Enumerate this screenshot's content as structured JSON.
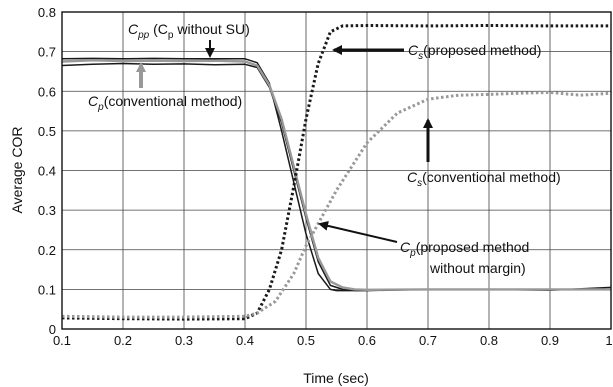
{
  "chart_data": {
    "type": "line",
    "title": "",
    "xlabel": "Time (sec)",
    "ylabel": "Average COR",
    "xlim": [
      0.1,
      1.0
    ],
    "ylim": [
      0,
      0.8
    ],
    "xticks": [
      "0.1",
      "0.2",
      "0.3",
      "0.4",
      "0.5",
      "0.6",
      "0.7",
      "0.8",
      "0.9",
      "1"
    ],
    "yticks": [
      "0",
      "0.1",
      "0.2",
      "0.3",
      "0.4",
      "0.5",
      "0.6",
      "0.7",
      "0.8"
    ],
    "grid": true,
    "legend": "none",
    "colors": {
      "dark": "#1a1a1a",
      "gray": "#999999",
      "grid": "#444444"
    },
    "series": [
      {
        "x": [
          0.1,
          0.15,
          0.2,
          0.25,
          0.3,
          0.35,
          0.4,
          0.42,
          0.44,
          0.46,
          0.48,
          0.5,
          0.52,
          0.54,
          0.55,
          0.57,
          0.6,
          0.7,
          0.8,
          0.9,
          1.0
        ],
        "y": [
          0.682,
          0.683,
          0.682,
          0.683,
          0.682,
          0.682,
          0.682,
          0.672,
          0.62,
          0.5,
          0.37,
          0.24,
          0.14,
          0.1,
          0.097,
          0.097,
          0.098,
          0.1,
          0.1,
          0.098,
          0.105
        ],
        "style": "solid",
        "color": "dark"
      },
      {
        "x": [
          0.1,
          0.15,
          0.2,
          0.25,
          0.3,
          0.35,
          0.4,
          0.42,
          0.44,
          0.46,
          0.48,
          0.5,
          0.52,
          0.54,
          0.56,
          0.58,
          0.6,
          0.7,
          0.8,
          0.9,
          1.0
        ],
        "y": [
          0.665,
          0.668,
          0.67,
          0.668,
          0.669,
          0.667,
          0.668,
          0.66,
          0.61,
          0.52,
          0.4,
          0.28,
          0.17,
          0.11,
          0.1,
          0.097,
          0.097,
          0.1,
          0.1,
          0.099,
          0.1
        ],
        "style": "solid",
        "color": "dark"
      },
      {
        "x": [
          0.1,
          0.15,
          0.2,
          0.25,
          0.3,
          0.35,
          0.4,
          0.42,
          0.44,
          0.46,
          0.48,
          0.5,
          0.52,
          0.54,
          0.56,
          0.58,
          0.6,
          0.7,
          0.8,
          0.9,
          1.0
        ],
        "y": [
          0.675,
          0.678,
          0.676,
          0.677,
          0.676,
          0.677,
          0.675,
          0.665,
          0.615,
          0.53,
          0.41,
          0.29,
          0.18,
          0.12,
          0.105,
          0.1,
          0.099,
          0.1,
          0.1,
          0.1,
          0.1
        ],
        "style": "solid",
        "color": "gray"
      },
      {
        "x": [
          0.1,
          0.2,
          0.3,
          0.4,
          0.42,
          0.44,
          0.46,
          0.47,
          0.48,
          0.5,
          0.52,
          0.54,
          0.56,
          0.6,
          0.7,
          0.8,
          0.9,
          1.0
        ],
        "y": [
          0.028,
          0.026,
          0.025,
          0.026,
          0.04,
          0.1,
          0.2,
          0.28,
          0.36,
          0.53,
          0.67,
          0.75,
          0.765,
          0.766,
          0.765,
          0.766,
          0.765,
          0.765
        ],
        "style": "dotted",
        "color": "dark"
      },
      {
        "x": [
          0.1,
          0.2,
          0.3,
          0.4,
          0.42,
          0.45,
          0.48,
          0.5,
          0.55,
          0.6,
          0.65,
          0.7,
          0.75,
          0.8,
          0.85,
          0.9,
          0.95,
          1.0
        ],
        "y": [
          0.032,
          0.03,
          0.03,
          0.032,
          0.04,
          0.07,
          0.14,
          0.21,
          0.35,
          0.47,
          0.545,
          0.58,
          0.59,
          0.592,
          0.595,
          0.597,
          0.59,
          0.595
        ],
        "style": "dotted",
        "color": "gray"
      }
    ],
    "annotations": [
      {
        "main": "C",
        "sub": "pp",
        "rest": " (C",
        "sub2": "p",
        "rest2": " without SU)"
      },
      {
        "main": "C",
        "sub": "p",
        "rest": "(conventional method)"
      },
      {
        "main": "C",
        "sub": "s",
        "rest": "(proposed method)"
      },
      {
        "main": "C",
        "sub": "s",
        "rest": "(conventional method)"
      },
      {
        "main": "C",
        "sub": "p",
        "rest": "(proposed method",
        "line2": "without margin)"
      }
    ]
  }
}
